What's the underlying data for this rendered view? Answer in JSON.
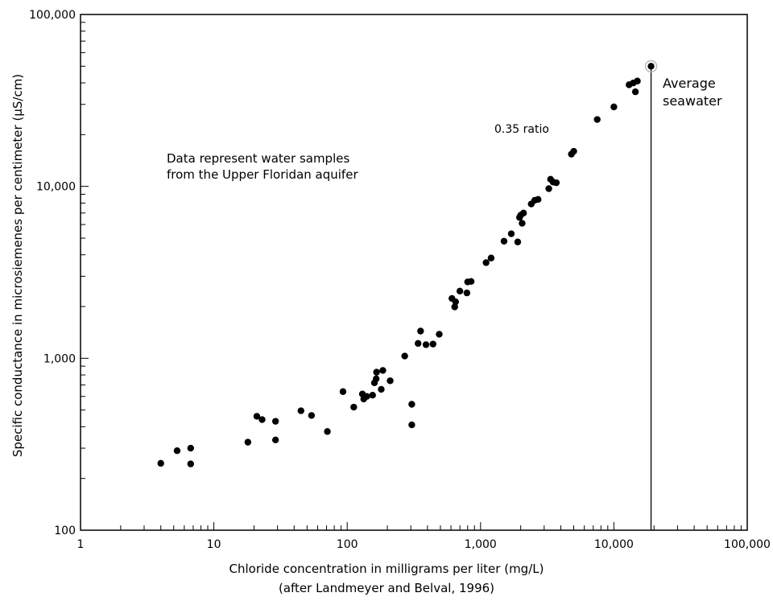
{
  "chart_data": {
    "type": "scatter",
    "xlabel": "Chloride concentration in milligrams per liter  (mg/L)",
    "xlabel_note": "(after Landmeyer and Belval, 1996)",
    "ylabel": "Specific conductance in microsiemenes per centimeter (µS/cm)",
    "xscale": "log",
    "yscale": "log",
    "xlim": [
      1,
      100000
    ],
    "ylim": [
      100,
      100000
    ],
    "x_ticks": [
      {
        "value": 1,
        "label": "1"
      },
      {
        "value": 10,
        "label": "10"
      },
      {
        "value": 100,
        "label": "100"
      },
      {
        "value": 1000,
        "label": "1,000"
      },
      {
        "value": 10000,
        "label": "10,000"
      },
      {
        "value": 100000,
        "label": "100,000"
      }
    ],
    "y_ticks": [
      {
        "value": 100,
        "label": "100"
      },
      {
        "value": 1000,
        "label": "1,000"
      },
      {
        "value": 10000,
        "label": "10,000"
      },
      {
        "value": 100000,
        "label": "100,000"
      }
    ],
    "annotations": {
      "data_note_line1": "Data represent water samples",
      "data_note_line2": "from the Upper Floridan aquifer",
      "ratio_label": "0.35 ratio",
      "seawater_line1": "Average",
      "seawater_line2": "seawater"
    },
    "seawater_reference": {
      "x": 19000,
      "y": 50000
    },
    "points": [
      {
        "x": 4,
        "y": 245
      },
      {
        "x": 5.3,
        "y": 290
      },
      {
        "x": 6.7,
        "y": 300
      },
      {
        "x": 6.7,
        "y": 243
      },
      {
        "x": 18,
        "y": 325
      },
      {
        "x": 21,
        "y": 460
      },
      {
        "x": 23,
        "y": 440
      },
      {
        "x": 29,
        "y": 430
      },
      {
        "x": 29,
        "y": 335
      },
      {
        "x": 45,
        "y": 495
      },
      {
        "x": 54,
        "y": 465
      },
      {
        "x": 71,
        "y": 375
      },
      {
        "x": 93,
        "y": 640
      },
      {
        "x": 112,
        "y": 520
      },
      {
        "x": 130,
        "y": 620
      },
      {
        "x": 133,
        "y": 580
      },
      {
        "x": 140,
        "y": 600
      },
      {
        "x": 155,
        "y": 610
      },
      {
        "x": 160,
        "y": 720
      },
      {
        "x": 165,
        "y": 760
      },
      {
        "x": 166,
        "y": 830
      },
      {
        "x": 180,
        "y": 660
      },
      {
        "x": 185,
        "y": 850
      },
      {
        "x": 210,
        "y": 740
      },
      {
        "x": 270,
        "y": 1030
      },
      {
        "x": 305,
        "y": 540
      },
      {
        "x": 305,
        "y": 410
      },
      {
        "x": 340,
        "y": 1220
      },
      {
        "x": 355,
        "y": 1440
      },
      {
        "x": 390,
        "y": 1200
      },
      {
        "x": 440,
        "y": 1210
      },
      {
        "x": 490,
        "y": 1380
      },
      {
        "x": 610,
        "y": 2230
      },
      {
        "x": 640,
        "y": 1990
      },
      {
        "x": 650,
        "y": 2130
      },
      {
        "x": 700,
        "y": 2460
      },
      {
        "x": 790,
        "y": 2400
      },
      {
        "x": 800,
        "y": 2780
      },
      {
        "x": 850,
        "y": 2800
      },
      {
        "x": 1100,
        "y": 3600
      },
      {
        "x": 1200,
        "y": 3830
      },
      {
        "x": 1500,
        "y": 4800
      },
      {
        "x": 1700,
        "y": 5300
      },
      {
        "x": 1900,
        "y": 4750
      },
      {
        "x": 1960,
        "y": 6600
      },
      {
        "x": 2000,
        "y": 6800
      },
      {
        "x": 2050,
        "y": 6100
      },
      {
        "x": 2100,
        "y": 7000
      },
      {
        "x": 2400,
        "y": 7900
      },
      {
        "x": 2550,
        "y": 8300
      },
      {
        "x": 2700,
        "y": 8400
      },
      {
        "x": 3250,
        "y": 9700
      },
      {
        "x": 3350,
        "y": 11000
      },
      {
        "x": 3500,
        "y": 10600
      },
      {
        "x": 3700,
        "y": 10500
      },
      {
        "x": 4800,
        "y": 15400
      },
      {
        "x": 5000,
        "y": 16000
      },
      {
        "x": 7500,
        "y": 24500
      },
      {
        "x": 10000,
        "y": 29000
      },
      {
        "x": 13000,
        "y": 39000
      },
      {
        "x": 14000,
        "y": 40000
      },
      {
        "x": 14500,
        "y": 35500
      },
      {
        "x": 15000,
        "y": 41000
      },
      {
        "x": 19000,
        "y": 50000
      }
    ]
  }
}
